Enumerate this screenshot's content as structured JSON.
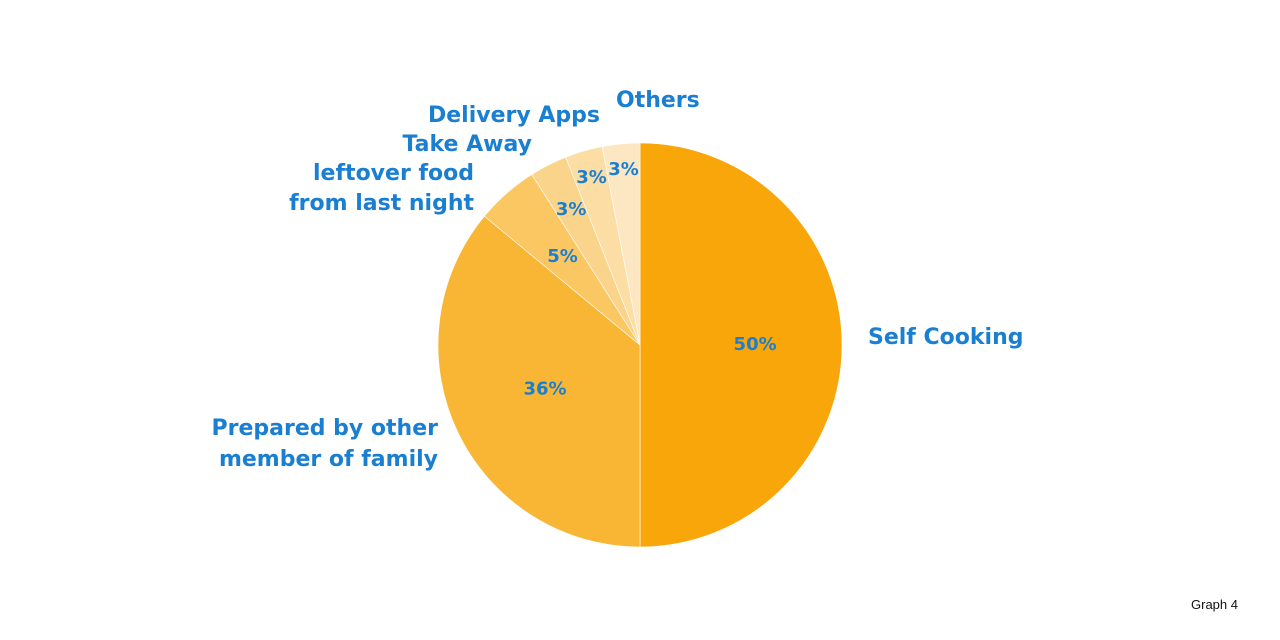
{
  "chart_data": {
    "type": "pie",
    "title": "",
    "slices": [
      {
        "label": "Self Cooking",
        "value": 50,
        "display": "50%",
        "color": "#F9A60A"
      },
      {
        "label": "Prepared by other member of family",
        "value": 36,
        "display": "36%",
        "color": "#F8B634"
      },
      {
        "label": "leftover food from last night",
        "value": 5,
        "display": "5%",
        "color": "#FAC762"
      },
      {
        "label": "Take Away",
        "value": 3,
        "display": "3%",
        "color": "#FBD48B"
      },
      {
        "label": "Delivery Apps",
        "value": 3,
        "display": "3%",
        "color": "#FCDDA4"
      },
      {
        "label": "Others",
        "value": 3,
        "display": "3%",
        "color": "#FDE7C2"
      }
    ],
    "label_color": "#1a7fd1"
  },
  "caption": "Graph 4"
}
